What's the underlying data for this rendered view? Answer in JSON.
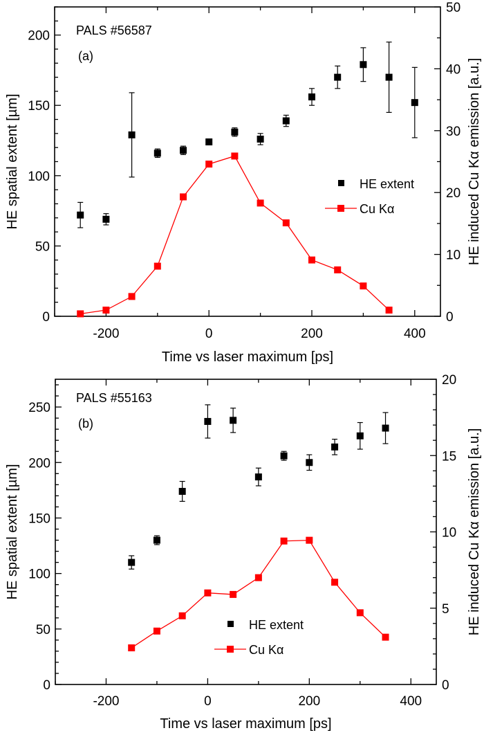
{
  "chart_data": [
    {
      "type": "scatter",
      "panel_label": "(a)",
      "annotation": "PALS #56587",
      "xlabel": "Time vs laser maximum [ps]",
      "ylabel": "HE spatial extent [µm]",
      "y2label": "HE induced Cu Kα emission [a.u.]",
      "xlim": [
        -300,
        450
      ],
      "ylim": [
        0,
        220
      ],
      "y2lim": [
        0,
        50
      ],
      "xticks": [
        -200,
        0,
        200,
        400
      ],
      "yticks": [
        0,
        50,
        100,
        150,
        200
      ],
      "y2ticks": [
        0,
        10,
        20,
        30,
        40,
        50
      ],
      "legend_placement": "center-right",
      "legend": [
        "HE extent",
        "Cu Kα"
      ],
      "series": [
        {
          "name": "HE extent",
          "axis": "left",
          "color": "#000000",
          "style": "markers-errorbars",
          "x": [
            -250,
            -200,
            -150,
            -100,
            -50,
            0,
            50,
            100,
            150,
            200,
            250,
            300,
            350,
            400
          ],
          "y": [
            72,
            69,
            129,
            116,
            118,
            124,
            131,
            126,
            139,
            156,
            170,
            179,
            170,
            152
          ],
          "err": [
            9,
            4,
            30,
            3,
            3,
            2,
            3,
            4,
            4,
            6,
            8,
            12,
            25,
            25
          ]
        },
        {
          "name": "Cu Kα",
          "axis": "right",
          "color": "#ff0000",
          "style": "line-markers",
          "x": [
            -250,
            -200,
            -150,
            -100,
            -50,
            0,
            50,
            100,
            150,
            200,
            250,
            300,
            350
          ],
          "y": [
            0.4,
            1.0,
            3.2,
            8.1,
            19.3,
            24.6,
            25.9,
            18.3,
            15.1,
            9.1,
            7.5,
            4.9,
            1.0
          ]
        }
      ]
    },
    {
      "type": "scatter",
      "panel_label": "(b)",
      "annotation": "PALS #55163",
      "xlabel": "Time vs laser maximum [ps]",
      "ylabel": "HE spatial extent [µm]",
      "y2label": "HE induced Cu Kα emission [a.u.]",
      "xlim": [
        -300,
        450
      ],
      "ylim": [
        0,
        275
      ],
      "y2lim": [
        0,
        20
      ],
      "xticks": [
        -200,
        0,
        200,
        400
      ],
      "yticks": [
        0,
        50,
        100,
        150,
        200,
        250
      ],
      "y2ticks": [
        0,
        5,
        10,
        15,
        20
      ],
      "legend_placement": "bottom-center",
      "legend": [
        "HE extent",
        "Cu Kα"
      ],
      "series": [
        {
          "name": "HE extent",
          "axis": "left",
          "color": "#000000",
          "style": "markers-errorbars",
          "x": [
            -150,
            -100,
            -50,
            0,
            50,
            100,
            150,
            200,
            250,
            300,
            350
          ],
          "y": [
            110,
            130,
            174,
            237,
            238,
            187,
            206,
            200,
            214,
            224,
            231
          ],
          "err": [
            6,
            4,
            9,
            15,
            11,
            8,
            4,
            7,
            7,
            12,
            14
          ]
        },
        {
          "name": "Cu Kα",
          "axis": "right",
          "color": "#ff0000",
          "style": "line-markers",
          "x": [
            -150,
            -100,
            -50,
            0,
            50,
            100,
            150,
            200,
            250,
            300,
            350
          ],
          "y": [
            2.4,
            3.5,
            4.5,
            6.0,
            5.9,
            7.0,
            9.4,
            9.45,
            6.7,
            4.7,
            3.1
          ]
        }
      ]
    }
  ]
}
